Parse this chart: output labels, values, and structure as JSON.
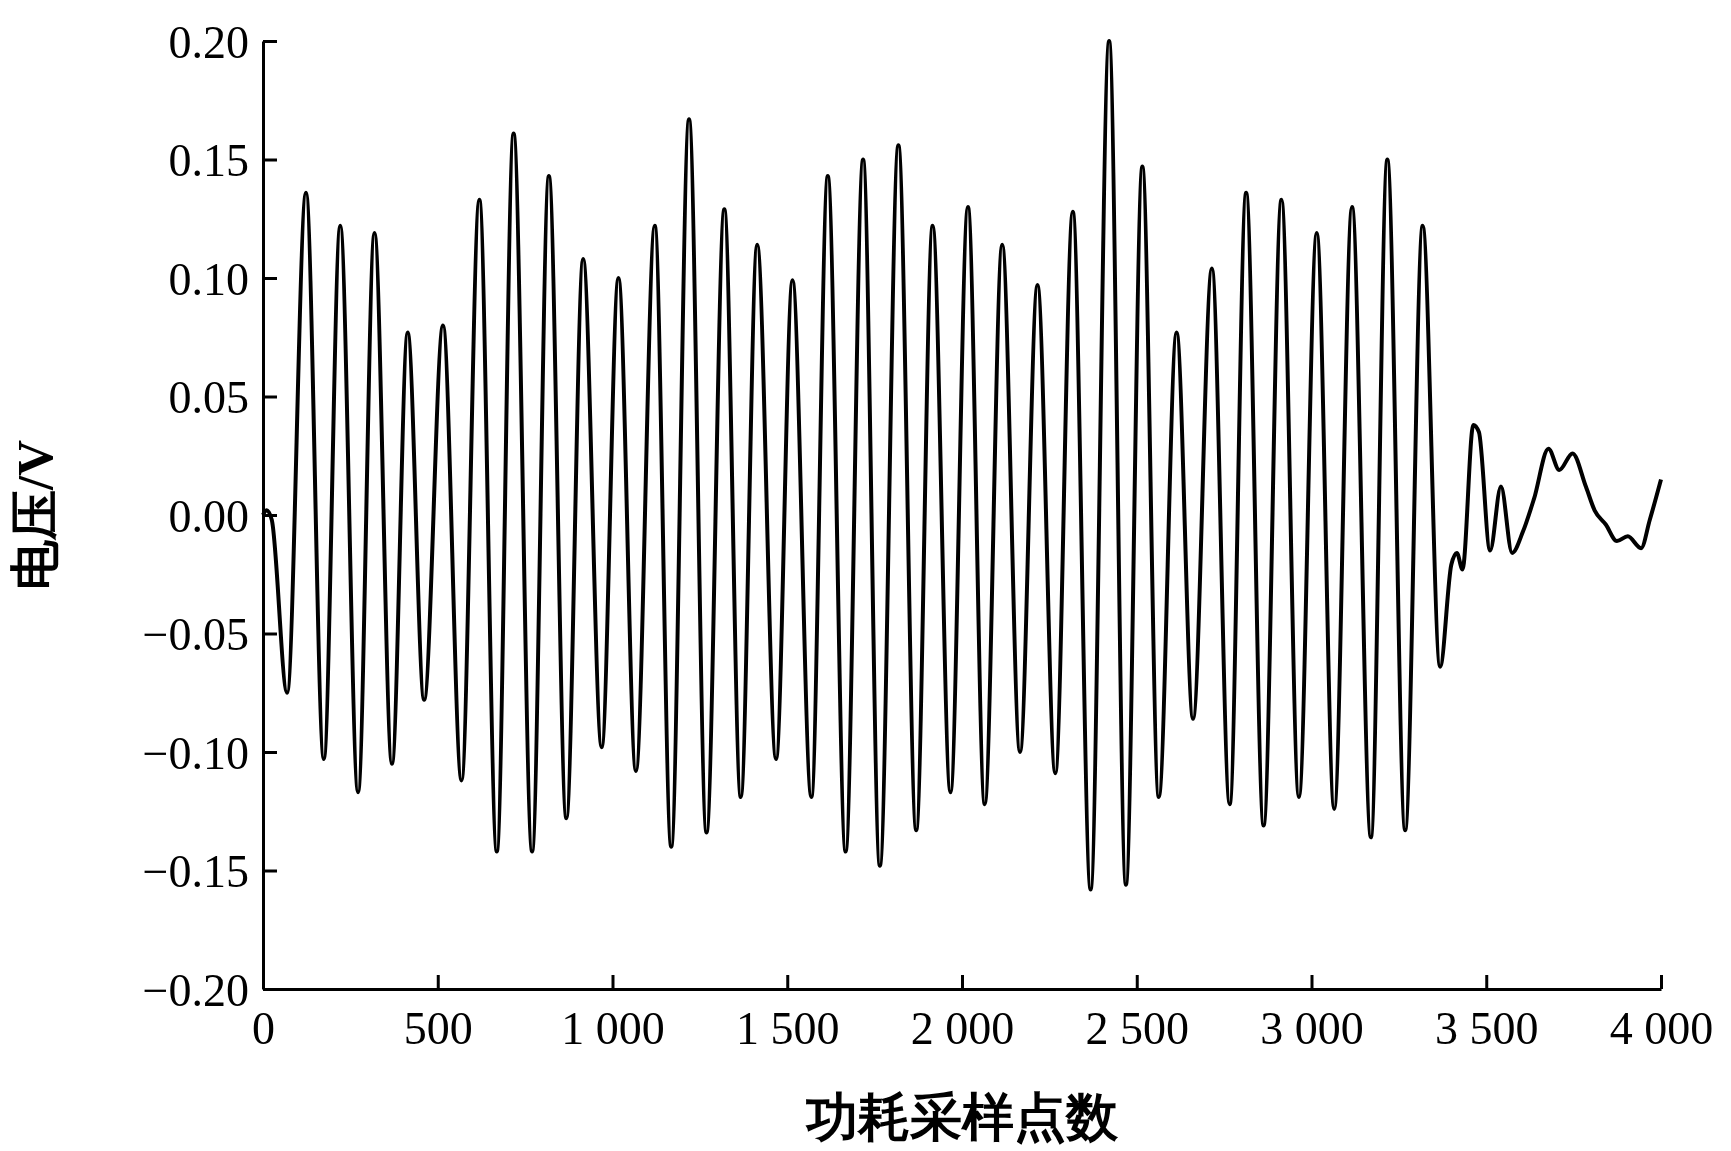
{
  "chart_data": {
    "type": "line",
    "xlabel": "功耗采样点数",
    "ylabel": "电压/V",
    "xlim": [
      0,
      4000
    ],
    "ylim": [
      -0.2,
      0.2
    ],
    "xticks": [
      0,
      500,
      {
        "value": 1000,
        "label": "1 000"
      },
      {
        "value": 1500,
        "label": "1 500"
      },
      {
        "value": 2000,
        "label": "2 000"
      },
      {
        "value": 2500,
        "label": "2 500"
      },
      {
        "value": 3000,
        "label": "3 000"
      },
      {
        "value": 3500,
        "label": "3 500"
      },
      {
        "value": 4000,
        "label": "4 000"
      }
    ],
    "yticks": [
      {
        "value": -0.2,
        "label": "−0.20"
      },
      {
        "value": -0.15,
        "label": "−0.15"
      },
      {
        "value": -0.1,
        "label": "−0.10"
      },
      {
        "value": -0.05,
        "label": "−0.05"
      },
      {
        "value": 0,
        "label": "0.00"
      },
      {
        "value": 0.05,
        "label": "0.05"
      },
      {
        "value": 0.1,
        "label": "0.10"
      },
      {
        "value": 0.15,
        "label": "0.15"
      },
      {
        "value": 0.2,
        "label": "0.20"
      }
    ],
    "grid": false,
    "marker": "none",
    "line_style": "solid",
    "series": [
      {
        "color": "#000000",
        "x": [
          0,
          10,
          25,
          69,
          123,
          174,
          221,
          272,
          319,
          369,
          414,
          461,
          515,
          568,
          619,
          669,
          717,
          770,
          818,
          868,
          916,
          969,
          1017,
          1067,
          1121,
          1168,
          1219,
          1269,
          1320,
          1367,
          1414,
          1468,
          1515,
          1569,
          1616,
          1667,
          1717,
          1765,
          1818,
          1869,
          1916,
          1967,
          2017,
          2065,
          2115,
          2166,
          2216,
          2267,
          2317,
          2368,
          2421,
          2469,
          2516,
          2563,
          2614,
          2661,
          2715,
          2766,
          2813,
          2863,
          2914,
          2964,
          3015,
          3065,
          3116,
          3170,
          3217,
          3268,
          3318,
          3368,
          3400,
          3416,
          3432,
          3463,
          3479,
          3511,
          3542,
          3574,
          3605,
          3637,
          3678,
          3709,
          3747,
          3785,
          3810,
          3842,
          3874,
          3905,
          3943,
          3968,
          4000
        ],
        "values": [
          0,
          0.002,
          -0.002,
          -0.075,
          0.136,
          -0.103,
          0.122,
          -0.117,
          0.119,
          -0.105,
          0.077,
          -0.078,
          0.08,
          -0.112,
          0.133,
          -0.142,
          0.161,
          -0.142,
          0.143,
          -0.128,
          0.108,
          -0.098,
          0.1,
          -0.108,
          0.122,
          -0.14,
          0.167,
          -0.134,
          0.129,
          -0.119,
          0.114,
          -0.103,
          0.099,
          -0.119,
          0.143,
          -0.142,
          0.15,
          -0.148,
          0.156,
          -0.133,
          0.122,
          -0.117,
          0.13,
          -0.122,
          0.114,
          -0.1,
          0.097,
          -0.109,
          0.128,
          -0.158,
          0.2,
          -0.156,
          0.147,
          -0.119,
          0.077,
          -0.086,
          0.104,
          -0.122,
          0.136,
          -0.131,
          0.133,
          -0.119,
          0.119,
          -0.124,
          0.13,
          -0.136,
          0.15,
          -0.133,
          0.122,
          -0.064,
          -0.021,
          -0.016,
          -0.023,
          0.038,
          0.035,
          -0.015,
          0.012,
          -0.016,
          -0.007,
          0.007,
          0.028,
          0.019,
          0.026,
          0.012,
          0.002,
          -0.004,
          -0.011,
          -0.009,
          -0.014,
          -0.002,
          0.015
        ]
      }
    ]
  }
}
